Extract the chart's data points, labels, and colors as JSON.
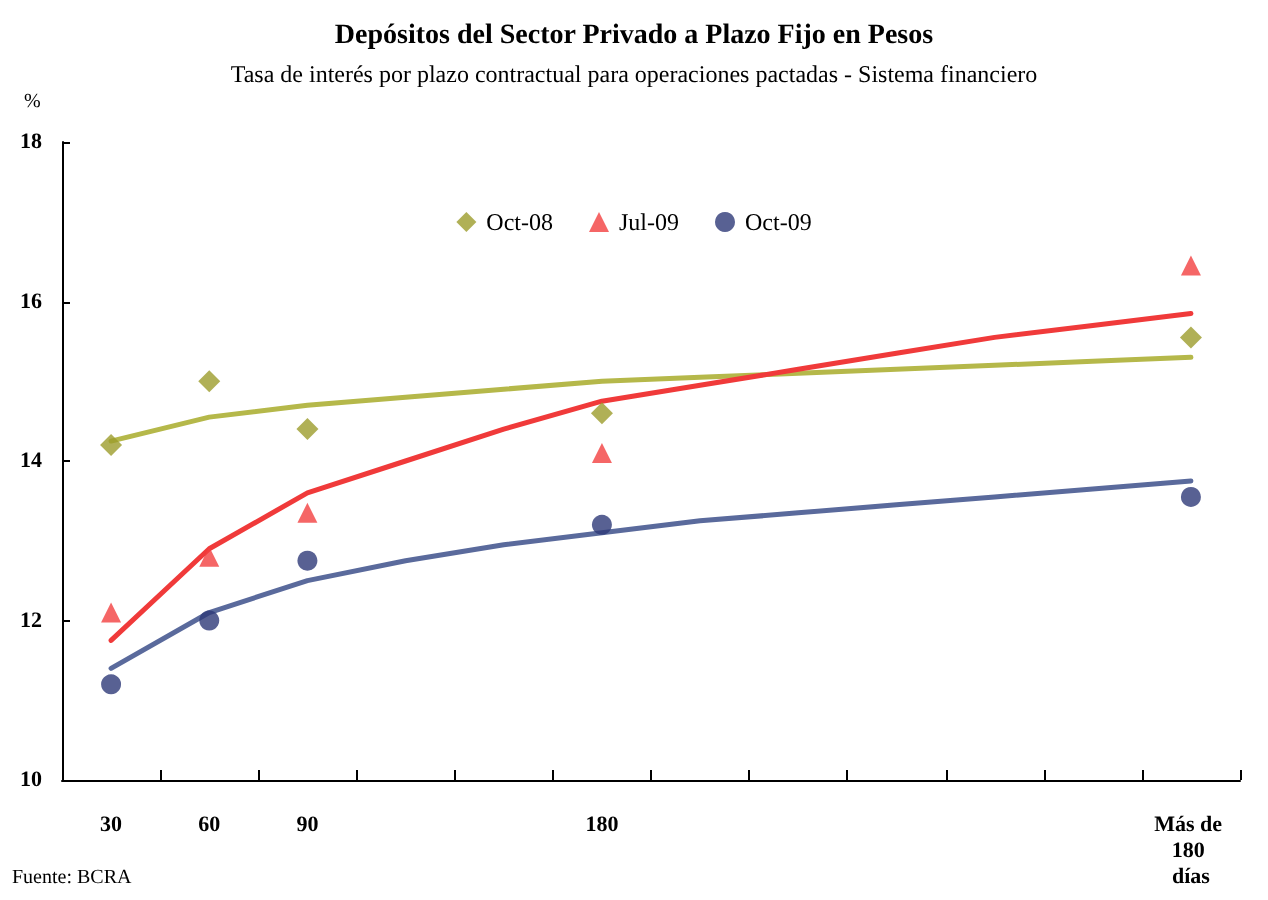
{
  "chart_data": {
    "type": "scatter",
    "title": "Depósitos del Sector Privado a Plazo Fijo en Pesos",
    "subtitle": "Tasa de interés por plazo contractual para operaciones pactadas - Sistema financiero",
    "ylabel": "%",
    "annotations": [
      "Fuente: BCRA"
    ],
    "categories": [
      "30",
      "60",
      "90",
      null,
      null,
      "180",
      null,
      null,
      null,
      null,
      null,
      "Más de 180 días"
    ],
    "ylim": [
      10,
      18
    ],
    "yticks": [
      10,
      12,
      14,
      16,
      18
    ],
    "grid": false,
    "legend": "top",
    "series": [
      {
        "name": "Oct-08",
        "color": "#9c9c2c",
        "marker": "diamond",
        "values": [
          14.2,
          15.0,
          14.4,
          null,
          null,
          14.6,
          null,
          null,
          null,
          null,
          null,
          15.55
        ]
      },
      {
        "name": "Jul-09",
        "color": "#f24040",
        "marker": "triangle",
        "values": [
          12.1,
          12.8,
          13.35,
          null,
          null,
          14.1,
          null,
          null,
          null,
          null,
          null,
          16.45
        ]
      },
      {
        "name": "Oct-09",
        "color": "#2e3a78",
        "marker": "circle",
        "values": [
          11.2,
          12.0,
          12.75,
          null,
          null,
          13.2,
          null,
          null,
          null,
          null,
          null,
          13.55
        ]
      },
      {
        "type": "line",
        "color": "#b5b84a",
        "marker": "none",
        "values": [
          14.25,
          14.55,
          14.7,
          14.8,
          14.9,
          15.0,
          15.05,
          15.1,
          15.15,
          15.2,
          15.25,
          15.3
        ]
      },
      {
        "type": "line",
        "color": "#f03a3a",
        "marker": "none",
        "values": [
          11.75,
          12.9,
          13.6,
          14.0,
          14.4,
          14.75,
          14.95,
          15.15,
          15.35,
          15.55,
          15.7,
          15.85
        ]
      },
      {
        "type": "line",
        "color": "#5a6a9c",
        "marker": "none",
        "values": [
          11.4,
          12.1,
          12.5,
          12.75,
          12.95,
          13.1,
          13.25,
          13.35,
          13.45,
          13.55,
          13.65,
          13.75
        ]
      }
    ]
  }
}
